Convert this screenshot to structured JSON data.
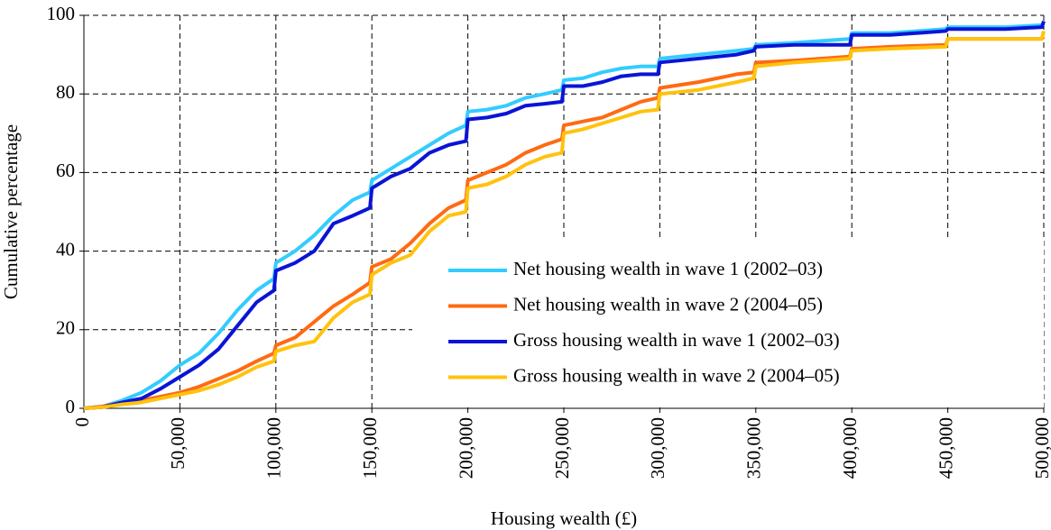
{
  "chart_data": {
    "type": "line",
    "x_label": "Housing wealth (£)",
    "y_label": "Cumulative percentage",
    "x": [
      0,
      10000,
      20000,
      30000,
      40000,
      50000,
      60000,
      70000,
      80000,
      90000,
      99000,
      100000,
      110000,
      120000,
      130000,
      140000,
      149000,
      150000,
      160000,
      170000,
      180000,
      190000,
      199000,
      200000,
      210000,
      220000,
      230000,
      240000,
      249000,
      250000,
      260000,
      270000,
      280000,
      290000,
      299000,
      300000,
      320000,
      340000,
      349000,
      350000,
      370000,
      399000,
      400000,
      420000,
      449000,
      450000,
      480000,
      499000,
      500000
    ],
    "series": [
      {
        "name": "Net housing wealth in wave 1 (2002–03)",
        "color": "#33ccff",
        "values": [
          0,
          0.5,
          2,
          4,
          7,
          11,
          14,
          19,
          25,
          30,
          33,
          37,
          40,
          44,
          49,
          53,
          55,
          58,
          61,
          64,
          67,
          70,
          72,
          75.5,
          76,
          77,
          79,
          80,
          81,
          83.5,
          84,
          85.5,
          86.5,
          87,
          87,
          89,
          90,
          91,
          91.5,
          92.5,
          93,
          94,
          95.5,
          95.5,
          96.5,
          97,
          97,
          97.5,
          98
        ]
      },
      {
        "name": "Net housing wealth in wave 2 (2004–05)",
        "color": "#ff6a13",
        "values": [
          0,
          0.5,
          1.5,
          2,
          3,
          4,
          5.5,
          7.5,
          9.5,
          12,
          14,
          16,
          18,
          22,
          26,
          29,
          32,
          36,
          38,
          42,
          47,
          51,
          53,
          58,
          60,
          62,
          65,
          67,
          68.5,
          72,
          73,
          74,
          76,
          78,
          79,
          81.5,
          83,
          85,
          85.5,
          88,
          88.5,
          89.5,
          91.5,
          92,
          92.5,
          94,
          94,
          94,
          94.5
        ]
      },
      {
        "name": "Gross housing wealth in wave 1 (2002–03)",
        "color": "#0a14d6",
        "values": [
          0,
          0.3,
          1.5,
          2.5,
          5,
          8,
          11,
          15,
          21,
          27,
          30,
          35,
          37,
          40,
          47,
          49,
          51,
          56,
          59,
          61,
          65,
          67,
          68,
          73.5,
          74,
          75,
          77,
          77.5,
          78,
          82,
          82,
          83,
          84.5,
          85,
          85,
          88,
          89,
          90,
          91,
          92,
          92.5,
          92.5,
          95,
          95,
          96,
          96.5,
          96.5,
          97,
          98.5
        ]
      },
      {
        "name": "Gross housing wealth in wave 2 (2004–05)",
        "color": "#ffc20e",
        "values": [
          0,
          0.3,
          1,
          1.5,
          2.5,
          3.5,
          4.5,
          6,
          8,
          10.5,
          12,
          14.5,
          16,
          17,
          23,
          27,
          29,
          34,
          37,
          39,
          45,
          49,
          50,
          56,
          57,
          59,
          62,
          64,
          65,
          70,
          71,
          72.5,
          74,
          75.5,
          76,
          80,
          81,
          83,
          84,
          87,
          88,
          89,
          91,
          91.5,
          92,
          94,
          94,
          94,
          96
        ]
      }
    ],
    "xlim": [
      0,
      500000
    ],
    "xticks": [
      0,
      {
        "value": 50000,
        "label": "50,000"
      },
      {
        "value": 100000,
        "label": "100,000"
      },
      {
        "value": 150000,
        "label": "150,000"
      },
      {
        "value": 200000,
        "label": "200,000"
      },
      {
        "value": 250000,
        "label": "250,000"
      },
      {
        "value": 300000,
        "label": "300,000"
      },
      {
        "value": 350000,
        "label": "350,000"
      },
      {
        "value": 400000,
        "label": "400,000"
      },
      {
        "value": 450000,
        "label": "450,000"
      },
      {
        "value": 500000,
        "label": "500,000"
      }
    ],
    "ylim": [
      0,
      100
    ],
    "yticks": [
      0,
      20,
      40,
      60,
      80,
      100
    ],
    "grid": true,
    "legend": "lower right"
  }
}
